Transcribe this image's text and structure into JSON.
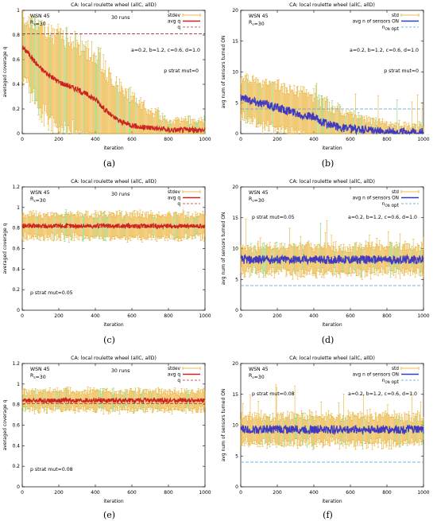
{
  "colors": {
    "stdev": "#e8a81e",
    "stdev_alt": "#5fd35f",
    "avg_q": "#cc2222",
    "q_line": "#b03030",
    "avg_on": "#2a3fc8",
    "avg_on_alt": "#7a2ea8",
    "n_opt": "#4aa0d8"
  },
  "captions": [
    "(a)",
    "(b)",
    "(c)",
    "(d)",
    "(e)",
    "(f)"
  ],
  "chart_data": [
    {
      "type": "line",
      "title": "CA: local roulette wheel (allC, allD)",
      "xlabel": "iteration",
      "ylabel": "averaged coverage q",
      "xlim": [
        0,
        1000
      ],
      "ylim": [
        0,
        1
      ],
      "xticks": [
        "0",
        "200",
        "400",
        "600",
        "800",
        "1000"
      ],
      "yticks": [
        "0",
        "0.2",
        "0.4",
        "0.6",
        "0.8",
        "1"
      ],
      "annotations": [
        "WSN 45",
        "R_s=30",
        "30 runs",
        "a=0.2, b=1.2, c=0.6, d=1.0",
        "p strat mut=0"
      ],
      "legend": [
        "stdev",
        "avg q",
        "q"
      ],
      "legend_position": "top-right",
      "kind": "coverage",
      "avg_points": [
        [
          0,
          0.7
        ],
        [
          30,
          0.66
        ],
        [
          60,
          0.6
        ],
        [
          100,
          0.53
        ],
        [
          150,
          0.47
        ],
        [
          200,
          0.42
        ],
        [
          250,
          0.39
        ],
        [
          300,
          0.36
        ],
        [
          350,
          0.32
        ],
        [
          400,
          0.28
        ],
        [
          450,
          0.2
        ],
        [
          500,
          0.13
        ],
        [
          550,
          0.09
        ],
        [
          600,
          0.07
        ],
        [
          650,
          0.05
        ],
        [
          700,
          0.05
        ],
        [
          750,
          0.04
        ],
        [
          800,
          0.03
        ],
        [
          900,
          0.03
        ],
        [
          1000,
          0.03
        ]
      ],
      "std_points": [
        [
          0,
          0.25
        ],
        [
          100,
          0.33
        ],
        [
          200,
          0.38
        ],
        [
          300,
          0.38
        ],
        [
          400,
          0.38
        ],
        [
          500,
          0.3
        ],
        [
          600,
          0.22
        ],
        [
          700,
          0.15
        ],
        [
          800,
          0.08
        ],
        [
          900,
          0.08
        ],
        [
          1000,
          0.08
        ]
      ],
      "ref_line": 0.81
    },
    {
      "type": "line",
      "title": "CA: local roulette wheel (allC, allD)",
      "xlabel": "iteration",
      "ylabel": "avg num of sensors turned ON",
      "xlim": [
        0,
        1000
      ],
      "ylim": [
        0,
        20
      ],
      "xticks": [
        "0",
        "200",
        "400",
        "600",
        "800",
        "1000"
      ],
      "yticks": [
        "0",
        "5",
        "10",
        "15",
        "20"
      ],
      "annotations": [
        "WSN 45",
        "R_s=30",
        "a=0.2, b=1.2, c=0.6, d=1.0",
        "p strat mut=0"
      ],
      "legend": [
        "std",
        "avg n of sensors ON",
        "n_ON opt"
      ],
      "legend_position": "top-right",
      "kind": "sensors",
      "avg_points": [
        [
          0,
          6
        ],
        [
          20,
          5.8
        ],
        [
          60,
          5.4
        ],
        [
          100,
          5
        ],
        [
          150,
          4.7
        ],
        [
          200,
          4.2
        ],
        [
          250,
          3.8
        ],
        [
          300,
          3.4
        ],
        [
          350,
          3
        ],
        [
          400,
          2.6
        ],
        [
          450,
          1.8
        ],
        [
          500,
          1.3
        ],
        [
          550,
          1
        ],
        [
          600,
          0.8
        ],
        [
          700,
          0.5
        ],
        [
          800,
          0.3
        ],
        [
          900,
          0.25
        ],
        [
          1000,
          0.2
        ]
      ],
      "std_points": [
        [
          0,
          3
        ],
        [
          100,
          3.5
        ],
        [
          200,
          3.6
        ],
        [
          300,
          3.5
        ],
        [
          400,
          3.5
        ],
        [
          500,
          3
        ],
        [
          600,
          2.5
        ],
        [
          700,
          1.8
        ],
        [
          800,
          1.2
        ],
        [
          900,
          1
        ],
        [
          1000,
          1
        ]
      ],
      "ref_line": 4
    },
    {
      "type": "line",
      "title": "CA: local roulette wheel (allC, allD)",
      "xlabel": "iteration",
      "ylabel": "averaged coverage q",
      "xlim": [
        0,
        1000
      ],
      "ylim": [
        0,
        1.2
      ],
      "xticks": [
        "0",
        "200",
        "400",
        "600",
        "800",
        "1000"
      ],
      "yticks": [
        "0",
        "0.2",
        "0.4",
        "0.6",
        "0.8",
        "1",
        "1.2"
      ],
      "annotations": [
        "WSN 45",
        "R_s=30",
        "30 runs",
        "p strat mut=0.05"
      ],
      "legend": [
        "stdev",
        "avg q",
        "q"
      ],
      "legend_position": "top-right",
      "kind": "coverage",
      "avg_points": [
        [
          0,
          0.82
        ],
        [
          1000,
          0.82
        ]
      ],
      "std_points": [
        [
          0,
          0.11
        ],
        [
          1000,
          0.11
        ]
      ],
      "ref_line": 0.81
    },
    {
      "type": "line",
      "title": "CA: local roulette wheel (allC, allD)",
      "xlabel": "iteration",
      "ylabel": "avg num of sensors turned ON",
      "xlim": [
        0,
        1000
      ],
      "ylim": [
        0,
        20
      ],
      "xticks": [
        "0",
        "200",
        "400",
        "600",
        "800",
        "1000"
      ],
      "yticks": [
        "0",
        "5",
        "10",
        "15",
        "20"
      ],
      "annotations": [
        "WSN 45",
        "R_s=30",
        "p strat mut=0.05",
        "a=0.2, b=1.2, c=0.6, d=1.0"
      ],
      "legend": [
        "std",
        "avg n of sensors ON",
        "n_ON opt"
      ],
      "legend_position": "top-right",
      "kind": "sensors",
      "avg_points": [
        [
          0,
          8.2
        ],
        [
          1000,
          8.2
        ]
      ],
      "std_points": [
        [
          0,
          2.1
        ],
        [
          1000,
          2.1
        ]
      ],
      "ref_line": 4
    },
    {
      "type": "line",
      "title": "CA: local roulette wheel (allC, allD)",
      "xlabel": "iteration",
      "ylabel": "averaged coverage q",
      "xlim": [
        0,
        1000
      ],
      "ylim": [
        0,
        1.2
      ],
      "xticks": [
        "0",
        "200",
        "400",
        "600",
        "800",
        "1000"
      ],
      "yticks": [
        "0",
        "0.2",
        "0.4",
        "0.6",
        "0.8",
        "1",
        "1.2"
      ],
      "annotations": [
        "WSN 45",
        "R_s=30",
        "30 runs",
        "p strat mut=0.08"
      ],
      "legend": [
        "stdev",
        "avg q",
        "q"
      ],
      "legend_position": "top-right",
      "kind": "coverage",
      "avg_points": [
        [
          0,
          0.84
        ],
        [
          1000,
          0.84
        ]
      ],
      "std_points": [
        [
          0,
          0.09
        ],
        [
          1000,
          0.09
        ]
      ],
      "ref_line": 0.81
    },
    {
      "type": "line",
      "title": "CA: local roulette wheel (allC, allD)",
      "xlabel": "iteration",
      "ylabel": "avg num of sensors turned ON",
      "xlim": [
        0,
        1000
      ],
      "ylim": [
        0,
        20
      ],
      "xticks": [
        "0",
        "200",
        "400",
        "600",
        "800",
        "1000"
      ],
      "yticks": [
        "0",
        "5",
        "10",
        "15",
        "20"
      ],
      "annotations": [
        "WSN 45",
        "R_s=30",
        "p strat mut=0.08",
        "a=0.2, b=1.2, c=0.6, d=1.0"
      ],
      "legend": [
        "std",
        "avg n of sensors ON",
        "n_ON opt"
      ],
      "legend_position": "top-right",
      "kind": "sensors",
      "avg_points": [
        [
          0,
          9.3
        ],
        [
          1000,
          9.3
        ]
      ],
      "std_points": [
        [
          0,
          2.2
        ],
        [
          1000,
          2.2
        ]
      ],
      "ref_line": 4
    }
  ]
}
